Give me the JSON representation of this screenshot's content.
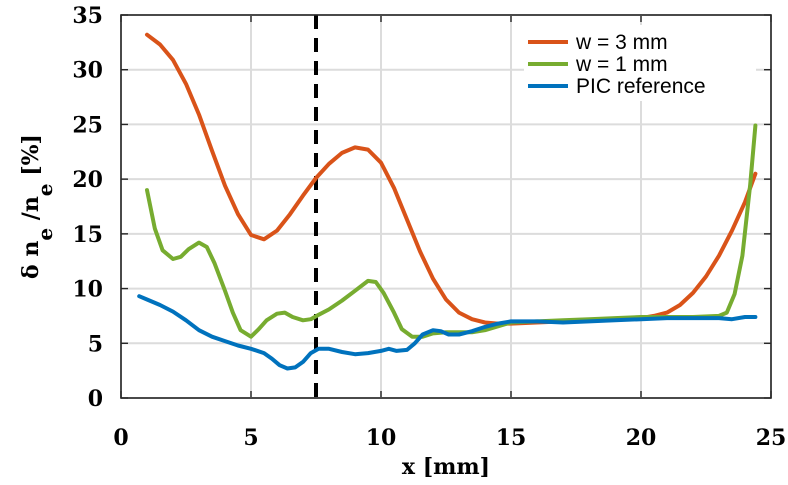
{
  "chart_data": {
    "type": "line",
    "xlabel": "x [mm]",
    "ylabel_parts": [
      "δ n",
      "e",
      " /n",
      "e",
      " [%]"
    ],
    "xlim": [
      0,
      25
    ],
    "ylim": [
      0,
      35
    ],
    "xticks": [
      "0",
      "5",
      "10",
      "15",
      "20",
      "25"
    ],
    "yticks": [
      "0",
      "5",
      "10",
      "15",
      "20",
      "25",
      "30",
      "35"
    ],
    "grid": true,
    "legend_position": "top-right",
    "vline": {
      "x": 7.5,
      "style": "dashed",
      "color": "#000000"
    },
    "series": [
      {
        "name": "w = 3 mm",
        "color": "#d95319",
        "x": [
          1.0,
          1.5,
          2.0,
          2.5,
          3.0,
          3.5,
          4.0,
          4.5,
          5.0,
          5.5,
          6.0,
          6.5,
          7.0,
          7.5,
          8.0,
          8.5,
          9.0,
          9.5,
          10.0,
          10.5,
          11.0,
          11.5,
          12.0,
          12.5,
          13.0,
          13.5,
          14.0,
          14.5,
          15.0,
          16.0,
          17.0,
          18.0,
          19.0,
          20.0,
          20.5,
          21.0,
          21.5,
          22.0,
          22.5,
          23.0,
          23.5,
          24.0,
          24.4
        ],
        "y": [
          33.2,
          32.3,
          30.9,
          28.7,
          25.9,
          22.6,
          19.4,
          16.8,
          14.9,
          14.5,
          15.3,
          16.8,
          18.5,
          20.1,
          21.4,
          22.4,
          22.9,
          22.7,
          21.5,
          19.2,
          16.3,
          13.4,
          10.9,
          9.0,
          7.8,
          7.2,
          6.9,
          6.8,
          6.8,
          6.9,
          7.0,
          7.1,
          7.2,
          7.3,
          7.5,
          7.8,
          8.5,
          9.6,
          11.1,
          13.0,
          15.3,
          17.9,
          20.5
        ]
      },
      {
        "name": "w = 1 mm",
        "color": "#77ac30",
        "x": [
          1.0,
          1.3,
          1.6,
          2.0,
          2.3,
          2.6,
          3.0,
          3.3,
          3.6,
          4.0,
          4.3,
          4.6,
          5.0,
          5.3,
          5.6,
          6.0,
          6.3,
          6.6,
          7.0,
          7.3,
          7.6,
          8.0,
          8.5,
          9.0,
          9.5,
          9.8,
          10.1,
          10.5,
          10.8,
          11.2,
          11.6,
          12.0,
          12.5,
          13.0,
          13.5,
          14.0,
          15.0,
          16.0,
          17.0,
          18.0,
          19.0,
          20.0,
          21.0,
          22.0,
          23.0,
          23.3,
          23.6,
          23.9,
          24.2,
          24.4
        ],
        "y": [
          19.0,
          15.5,
          13.5,
          12.7,
          12.9,
          13.6,
          14.2,
          13.8,
          12.3,
          9.8,
          7.8,
          6.2,
          5.6,
          6.3,
          7.1,
          7.7,
          7.8,
          7.4,
          7.1,
          7.2,
          7.6,
          8.1,
          8.9,
          9.8,
          10.7,
          10.6,
          9.6,
          7.8,
          6.3,
          5.6,
          5.6,
          5.9,
          6.0,
          6.0,
          6.0,
          6.2,
          6.9,
          7.0,
          7.1,
          7.2,
          7.3,
          7.4,
          7.4,
          7.4,
          7.5,
          7.8,
          9.5,
          13.0,
          19.5,
          24.9
        ]
      },
      {
        "name": "PIC reference",
        "color": "#0072bd",
        "x": [
          0.7,
          1.0,
          1.5,
          2.0,
          2.5,
          3.0,
          3.5,
          4.0,
          4.5,
          5.0,
          5.5,
          5.8,
          6.1,
          6.4,
          6.7,
          7.0,
          7.3,
          7.6,
          8.0,
          8.5,
          9.0,
          9.5,
          10.0,
          10.3,
          10.6,
          11.0,
          11.3,
          11.6,
          12.0,
          12.3,
          12.6,
          13.0,
          13.5,
          14.0,
          14.5,
          15.0,
          15.5,
          16.0,
          17.0,
          18.0,
          19.0,
          20.0,
          21.0,
          22.0,
          23.0,
          23.5,
          24.0,
          24.4
        ],
        "y": [
          9.3,
          9.0,
          8.5,
          7.9,
          7.1,
          6.2,
          5.6,
          5.2,
          4.8,
          4.5,
          4.1,
          3.6,
          3.0,
          2.7,
          2.8,
          3.3,
          4.1,
          4.5,
          4.5,
          4.2,
          4.0,
          4.1,
          4.3,
          4.5,
          4.3,
          4.4,
          5.0,
          5.8,
          6.2,
          6.1,
          5.8,
          5.8,
          6.1,
          6.5,
          6.8,
          7.0,
          7.0,
          7.0,
          6.9,
          7.0,
          7.1,
          7.2,
          7.3,
          7.3,
          7.3,
          7.2,
          7.4,
          7.4
        ]
      }
    ]
  }
}
